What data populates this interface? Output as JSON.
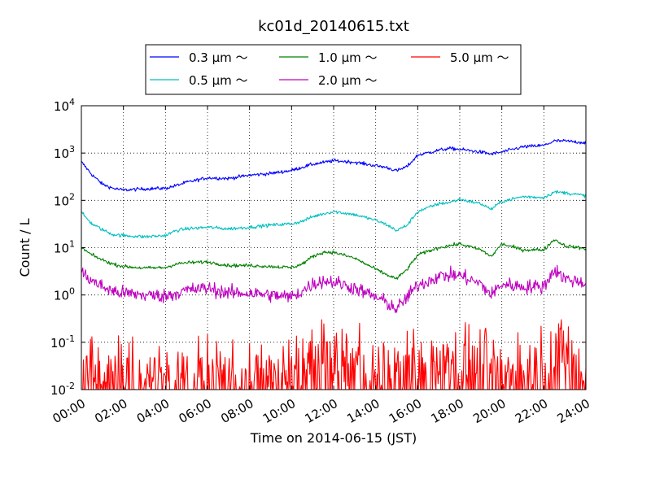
{
  "chart_data": {
    "type": "line",
    "title": "kc01d_20140615.txt",
    "xlabel": "Time on 2014-06-15 (JST)",
    "ylabel": "Count / L",
    "y_scale": "log",
    "ylim": [
      0.01,
      10000
    ],
    "xlim": [
      "00:00",
      "24:00"
    ],
    "x_ticks": [
      "00:00",
      "02:00",
      "04:00",
      "06:00",
      "08:00",
      "10:00",
      "12:00",
      "14:00",
      "16:00",
      "18:00",
      "20:00",
      "22:00",
      "24:00"
    ],
    "y_ticks": [
      {
        "value": 0.01,
        "base": "10",
        "exp": "-2"
      },
      {
        "value": 0.1,
        "base": "10",
        "exp": "-1"
      },
      {
        "value": 1,
        "base": "10",
        "exp": "0"
      },
      {
        "value": 10,
        "base": "10",
        "exp": "1"
      },
      {
        "value": 100,
        "base": "10",
        "exp": "2"
      },
      {
        "value": 1000,
        "base": "10",
        "exp": "3"
      },
      {
        "value": 10000,
        "base": "10",
        "exp": "4"
      }
    ],
    "grid": true,
    "legend_position": "top",
    "series": [
      {
        "name": "0.3 μm ～",
        "color": "#0000ff",
        "style": "smooth",
        "x": [
          "00:00",
          "00:30",
          "01:00",
          "01:30",
          "02:00",
          "03:00",
          "04:00",
          "04:30",
          "05:00",
          "06:00",
          "07:00",
          "08:00",
          "09:00",
          "10:00",
          "10:30",
          "11:00",
          "11:30",
          "12:00",
          "13:00",
          "14:00",
          "14:30",
          "15:00",
          "15:30",
          "16:00",
          "17:00",
          "17:30",
          "18:00",
          "19:00",
          "19:30",
          "20:00",
          "21:00",
          "22:00",
          "22:30",
          "23:00",
          "24:00"
        ],
        "y": [
          650,
          350,
          220,
          180,
          165,
          175,
          180,
          205,
          240,
          300,
          290,
          340,
          370,
          430,
          500,
          580,
          630,
          690,
          640,
          540,
          500,
          420,
          520,
          900,
          1150,
          1250,
          1200,
          1050,
          950,
          1050,
          1350,
          1450,
          1800,
          1800,
          1650
        ]
      },
      {
        "name": "0.5 μm ～",
        "color": "#00bfbf",
        "style": "smooth",
        "x": [
          "00:00",
          "00:30",
          "01:00",
          "01:30",
          "02:00",
          "03:00",
          "04:00",
          "04:30",
          "05:00",
          "06:00",
          "07:00",
          "08:00",
          "09:00",
          "10:00",
          "10:30",
          "11:00",
          "11:30",
          "12:00",
          "13:00",
          "14:00",
          "14:30",
          "15:00",
          "15:30",
          "16:00",
          "17:00",
          "17:30",
          "18:00",
          "19:00",
          "19:30",
          "20:00",
          "21:00",
          "22:00",
          "22:30",
          "23:00",
          "24:00"
        ],
        "y": [
          55,
          32,
          24,
          19,
          18,
          17,
          18,
          23,
          25,
          27,
          25,
          27,
          30,
          32,
          36,
          45,
          52,
          58,
          50,
          38,
          31,
          23,
          30,
          58,
          85,
          90,
          105,
          85,
          65,
          95,
          120,
          115,
          150,
          145,
          125
        ]
      },
      {
        "name": "1.0 μm ～",
        "color": "#008000",
        "style": "smooth",
        "x": [
          "00:00",
          "00:30",
          "01:00",
          "01:30",
          "02:00",
          "03:00",
          "04:00",
          "04:30",
          "05:00",
          "06:00",
          "07:00",
          "08:00",
          "09:00",
          "10:00",
          "10:30",
          "11:00",
          "11:30",
          "12:00",
          "13:00",
          "14:00",
          "14:30",
          "15:00",
          "15:30",
          "16:00",
          "17:00",
          "17:30",
          "18:00",
          "19:00",
          "19:30",
          "20:00",
          "21:00",
          "22:00",
          "22:30",
          "23:00",
          "24:00"
        ],
        "y": [
          10,
          7,
          5.5,
          4.5,
          4,
          3.7,
          3.8,
          4.5,
          4.8,
          5,
          4.2,
          4.2,
          4,
          3.8,
          4.5,
          6.5,
          8,
          8,
          6,
          3.5,
          2.7,
          2.2,
          3.5,
          7,
          10,
          11,
          12,
          9,
          6.5,
          12,
          9,
          9,
          15,
          11,
          9.5
        ]
      },
      {
        "name": "2.0 μm ～",
        "color": "#bf00bf",
        "style": "noisy",
        "x": [
          "00:00",
          "00:30",
          "01:00",
          "01:30",
          "02:00",
          "03:00",
          "04:00",
          "04:30",
          "05:00",
          "06:00",
          "07:00",
          "08:00",
          "09:00",
          "10:00",
          "10:30",
          "11:00",
          "11:30",
          "12:00",
          "13:00",
          "14:00",
          "14:30",
          "15:00",
          "15:30",
          "16:00",
          "17:00",
          "17:30",
          "18:00",
          "19:00",
          "19:30",
          "20:00",
          "21:00",
          "22:00",
          "22:30",
          "23:00",
          "24:00"
        ],
        "y": [
          3,
          2,
          1.5,
          1.2,
          1.1,
          1,
          0.95,
          1.1,
          1.25,
          1.4,
          1.1,
          1.1,
          1,
          0.9,
          1.2,
          1.7,
          2,
          1.9,
          1.4,
          0.9,
          0.7,
          0.5,
          0.9,
          1.6,
          2.5,
          2.6,
          2.6,
          1.7,
          1.0,
          1.7,
          1.5,
          1.5,
          3.5,
          2.2,
          1.8
        ]
      },
      {
        "name": "5.0 μm ～",
        "color": "#ff0000",
        "style": "spiky",
        "x": [
          "00:00",
          "02:00",
          "04:00",
          "06:00",
          "08:00",
          "10:00",
          "10:30",
          "11:00",
          "12:00",
          "13:00",
          "14:00",
          "15:00",
          "16:00",
          "17:00",
          "18:00",
          "19:00",
          "20:00",
          "21:00",
          "22:00",
          "23:00",
          "24:00"
        ],
        "y": [
          0.025,
          0.022,
          0.025,
          0.024,
          0.022,
          0.024,
          0.035,
          0.05,
          0.06,
          0.045,
          0.03,
          0.025,
          0.05,
          0.06,
          0.045,
          0.04,
          0.028,
          0.03,
          0.04,
          0.07,
          0.03
        ]
      }
    ]
  }
}
